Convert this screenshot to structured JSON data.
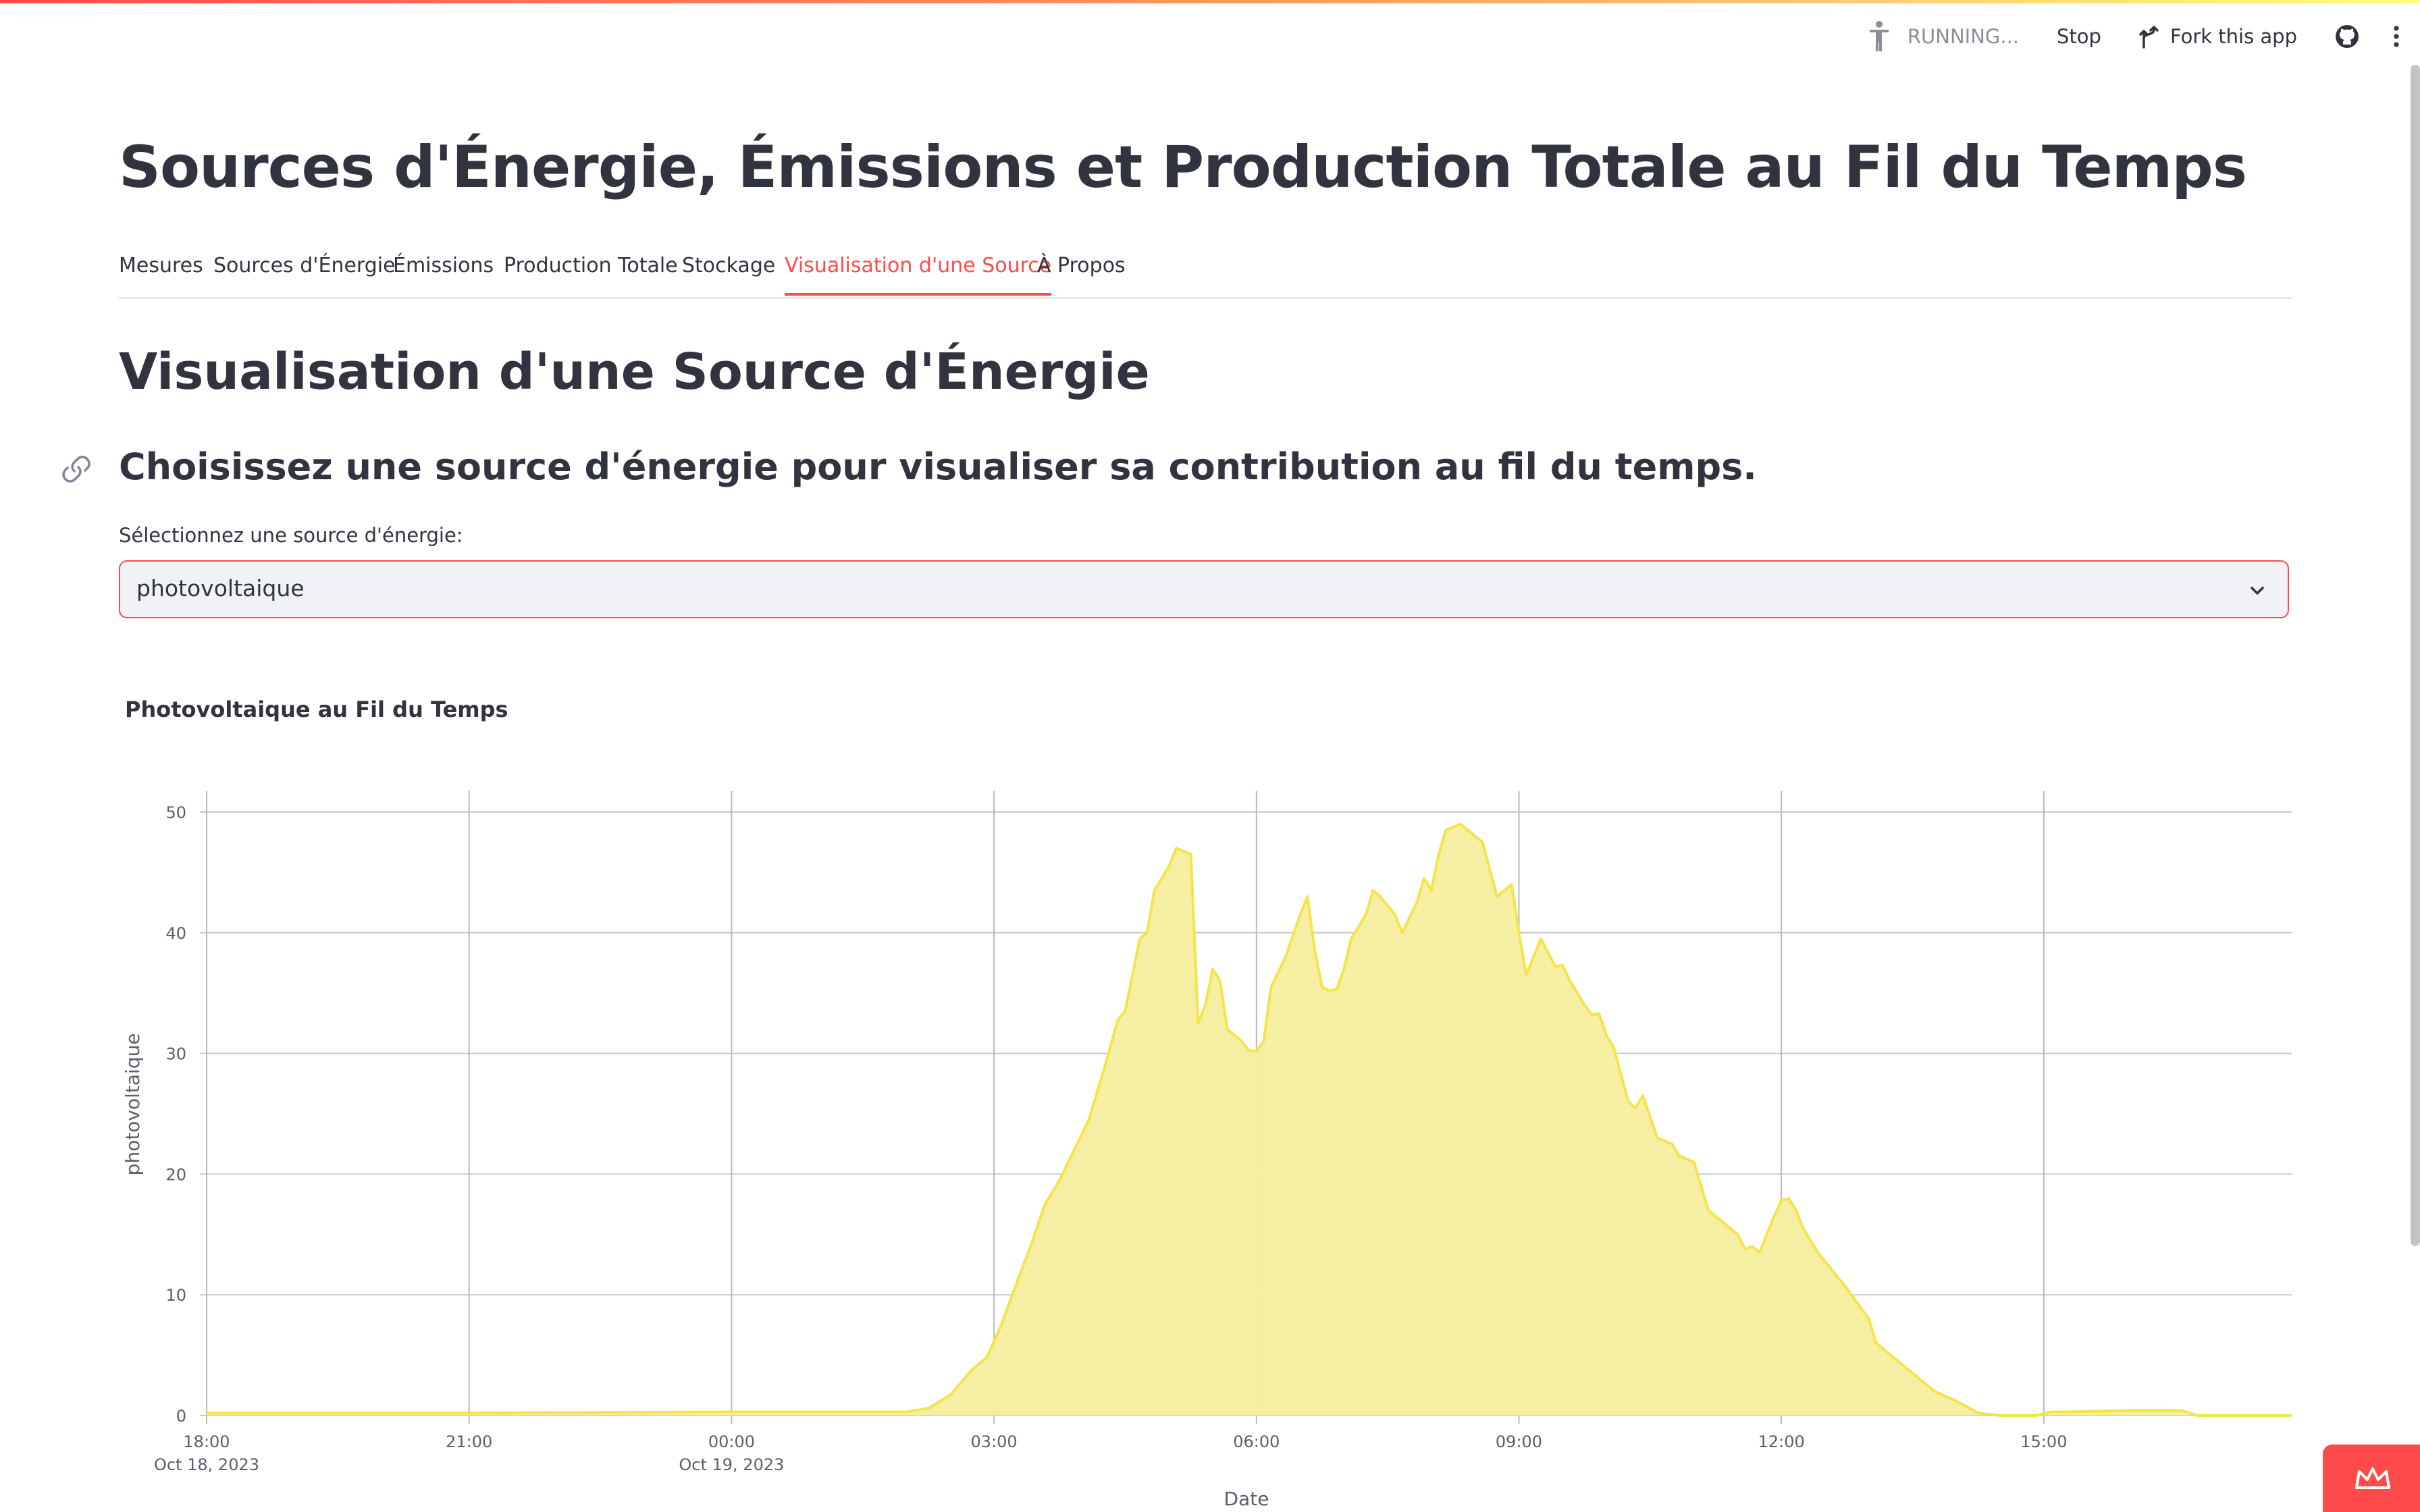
{
  "toolbar": {
    "status": "RUNNING...",
    "stop_label": "Stop",
    "fork_label": "Fork this app",
    "icons": [
      "running-figure-icon",
      "fork-icon",
      "github-icon",
      "kebab-menu-icon"
    ]
  },
  "page": {
    "title": "Sources d'Énergie, Émissions et Production Totale au Fil du Temps"
  },
  "tabs": [
    {
      "label": "Mesures"
    },
    {
      "label": "Sources d'Énergie"
    },
    {
      "label": "Émissions"
    },
    {
      "label": "Production Totale"
    },
    {
      "label": "Stockage"
    },
    {
      "label": "Visualisation d'une Source",
      "active": true
    },
    {
      "label": "À Propos"
    }
  ],
  "section": {
    "title": "Visualisation d'une Source d'Énergie",
    "subheading": "Choisissez une source d'énergie pour visualiser sa contribution au fil du temps."
  },
  "select": {
    "label": "Sélectionnez une source d'énergie:",
    "value": "photovoltaique"
  },
  "colors": {
    "accent": "#ff4b4b",
    "area_fill": "#f6ee9e",
    "area_line": "#f3e549",
    "text": "#31333f"
  },
  "chart_data": {
    "type": "area",
    "title": "Photovoltaique au Fil du Temps",
    "xlabel": "Date",
    "ylabel": "photovoltaique",
    "x_ticks": [
      {
        "time": "2023-10-18T18:00",
        "label": "18:00",
        "sublabel": "Oct 18, 2023"
      },
      {
        "time": "2023-10-18T21:00",
        "label": "21:00",
        "sublabel": ""
      },
      {
        "time": "2023-10-19T00:00",
        "label": "00:00",
        "sublabel": "Oct 19, 2023"
      },
      {
        "time": "2023-10-19T03:00",
        "label": "03:00",
        "sublabel": ""
      },
      {
        "time": "2023-10-19T06:00",
        "label": "06:00",
        "sublabel": ""
      },
      {
        "time": "2023-10-19T09:00",
        "label": "09:00",
        "sublabel": ""
      },
      {
        "time": "2023-10-19T12:00",
        "label": "12:00",
        "sublabel": ""
      },
      {
        "time": "2023-10-19T15:00",
        "label": "15:00",
        "sublabel": ""
      }
    ],
    "y_ticks": [
      0,
      10,
      20,
      30,
      40,
      50
    ],
    "xlim": [
      "2023-10-18T18:00",
      "2023-10-19T17:50"
    ],
    "ylim": [
      0,
      50
    ],
    "grid": true,
    "legend": false,
    "points": [
      [
        "2023-10-18T18:00",
        0.2
      ],
      [
        "2023-10-18T21:00",
        0.2
      ],
      [
        "2023-10-19T00:00",
        0.3
      ],
      [
        "2023-10-19T02:00",
        0.3
      ],
      [
        "2023-10-19T02:15",
        0.6
      ],
      [
        "2023-10-19T02:30",
        1.7
      ],
      [
        "2023-10-19T02:45",
        3.8
      ],
      [
        "2023-10-19T02:55",
        4.8
      ],
      [
        "2023-10-19T03:05",
        7.5
      ],
      [
        "2023-10-19T03:15",
        10.8
      ],
      [
        "2023-10-19T03:25",
        14.0
      ],
      [
        "2023-10-19T03:35",
        17.5
      ],
      [
        "2023-10-19T03:45",
        19.5
      ],
      [
        "2023-10-19T03:55",
        22.0
      ],
      [
        "2023-10-19T04:05",
        24.5
      ],
      [
        "2023-10-19T04:15",
        28.5
      ],
      [
        "2023-10-19T04:25",
        32.8
      ],
      [
        "2023-10-19T04:30",
        33.5
      ],
      [
        "2023-10-19T04:40",
        39.5
      ],
      [
        "2023-10-19T04:45",
        40.0
      ],
      [
        "2023-10-19T04:50",
        43.5
      ],
      [
        "2023-10-19T05:00",
        45.5
      ],
      [
        "2023-10-19T05:05",
        47.0
      ],
      [
        "2023-10-19T05:15",
        46.5
      ],
      [
        "2023-10-19T05:20",
        32.5
      ],
      [
        "2023-10-19T05:25",
        34.0
      ],
      [
        "2023-10-19T05:30",
        37.0
      ],
      [
        "2023-10-19T05:35",
        36.0
      ],
      [
        "2023-10-19T05:40",
        32.0
      ],
      [
        "2023-10-19T05:50",
        31.0
      ],
      [
        "2023-10-19T05:55",
        30.2
      ],
      [
        "2023-10-19T06:00",
        30.2
      ],
      [
        "2023-10-19T06:05",
        31.0
      ],
      [
        "2023-10-19T06:10",
        35.5
      ],
      [
        "2023-10-19T06:20",
        38.0
      ],
      [
        "2023-10-19T06:30",
        41.5
      ],
      [
        "2023-10-19T06:35",
        43.0
      ],
      [
        "2023-10-19T06:40",
        38.5
      ],
      [
        "2023-10-19T06:45",
        35.5
      ],
      [
        "2023-10-19T06:50",
        35.2
      ],
      [
        "2023-10-19T06:55",
        35.3
      ],
      [
        "2023-10-19T07:00",
        37.0
      ],
      [
        "2023-10-19T07:05",
        39.5
      ],
      [
        "2023-10-19T07:15",
        41.5
      ],
      [
        "2023-10-19T07:20",
        43.5
      ],
      [
        "2023-10-19T07:25",
        43.0
      ],
      [
        "2023-10-19T07:35",
        41.5
      ],
      [
        "2023-10-19T07:40",
        40.0
      ],
      [
        "2023-10-19T07:50",
        42.5
      ],
      [
        "2023-10-19T07:55",
        44.5
      ],
      [
        "2023-10-19T08:00",
        43.5
      ],
      [
        "2023-10-19T08:05",
        46.5
      ],
      [
        "2023-10-19T08:10",
        48.5
      ],
      [
        "2023-10-19T08:20",
        49.0
      ],
      [
        "2023-10-19T08:25",
        48.5
      ],
      [
        "2023-10-19T08:30",
        48.0
      ],
      [
        "2023-10-19T08:35",
        47.5
      ],
      [
        "2023-10-19T08:45",
        43.0
      ],
      [
        "2023-10-19T08:55",
        44.0
      ],
      [
        "2023-10-19T09:00",
        40.0
      ],
      [
        "2023-10-19T09:05",
        36.5
      ],
      [
        "2023-10-19T09:15",
        39.5
      ],
      [
        "2023-10-19T09:25",
        37.2
      ],
      [
        "2023-10-19T09:30",
        37.3
      ],
      [
        "2023-10-19T09:35",
        36.0
      ],
      [
        "2023-10-19T09:45",
        34.0
      ],
      [
        "2023-10-19T09:50",
        33.2
      ],
      [
        "2023-10-19T09:55",
        33.3
      ],
      [
        "2023-10-19T10:00",
        31.5
      ],
      [
        "2023-10-19T10:05",
        30.5
      ],
      [
        "2023-10-19T10:15",
        26.0
      ],
      [
        "2023-10-19T10:20",
        25.5
      ],
      [
        "2023-10-19T10:25",
        26.5
      ],
      [
        "2023-10-19T10:35",
        23.0
      ],
      [
        "2023-10-19T10:45",
        22.5
      ],
      [
        "2023-10-19T10:50",
        21.5
      ],
      [
        "2023-10-19T11:00",
        21.0
      ],
      [
        "2023-10-19T11:05",
        19.0
      ],
      [
        "2023-10-19T11:10",
        17.0
      ],
      [
        "2023-10-19T11:20",
        16.0
      ],
      [
        "2023-10-19T11:30",
        15.0
      ],
      [
        "2023-10-19T11:35",
        13.8
      ],
      [
        "2023-10-19T11:40",
        14.0
      ],
      [
        "2023-10-19T11:45",
        13.5
      ],
      [
        "2023-10-19T11:55",
        16.5
      ],
      [
        "2023-10-19T12:00",
        17.8
      ],
      [
        "2023-10-19T12:05",
        18.0
      ],
      [
        "2023-10-19T12:10",
        17.0
      ],
      [
        "2023-10-19T12:15",
        15.5
      ],
      [
        "2023-10-19T12:25",
        13.5
      ],
      [
        "2023-10-19T12:35",
        12.0
      ],
      [
        "2023-10-19T12:45",
        10.5
      ],
      [
        "2023-10-19T13:00",
        8.0
      ],
      [
        "2023-10-19T13:05",
        6.0
      ],
      [
        "2023-10-19T13:15",
        5.0
      ],
      [
        "2023-10-19T13:30",
        3.5
      ],
      [
        "2023-10-19T13:45",
        2.0
      ],
      [
        "2023-10-19T14:00",
        1.2
      ],
      [
        "2023-10-19T14:15",
        0.2
      ],
      [
        "2023-10-19T14:30",
        0.0
      ],
      [
        "2023-10-19T14:55",
        0.0
      ],
      [
        "2023-10-19T15:05",
        0.3
      ],
      [
        "2023-10-19T15:15",
        0.3
      ],
      [
        "2023-10-19T16:00",
        0.4
      ],
      [
        "2023-10-19T16:35",
        0.4
      ],
      [
        "2023-10-19T16:45",
        0.0
      ],
      [
        "2023-10-19T17:50",
        0.0
      ]
    ]
  }
}
